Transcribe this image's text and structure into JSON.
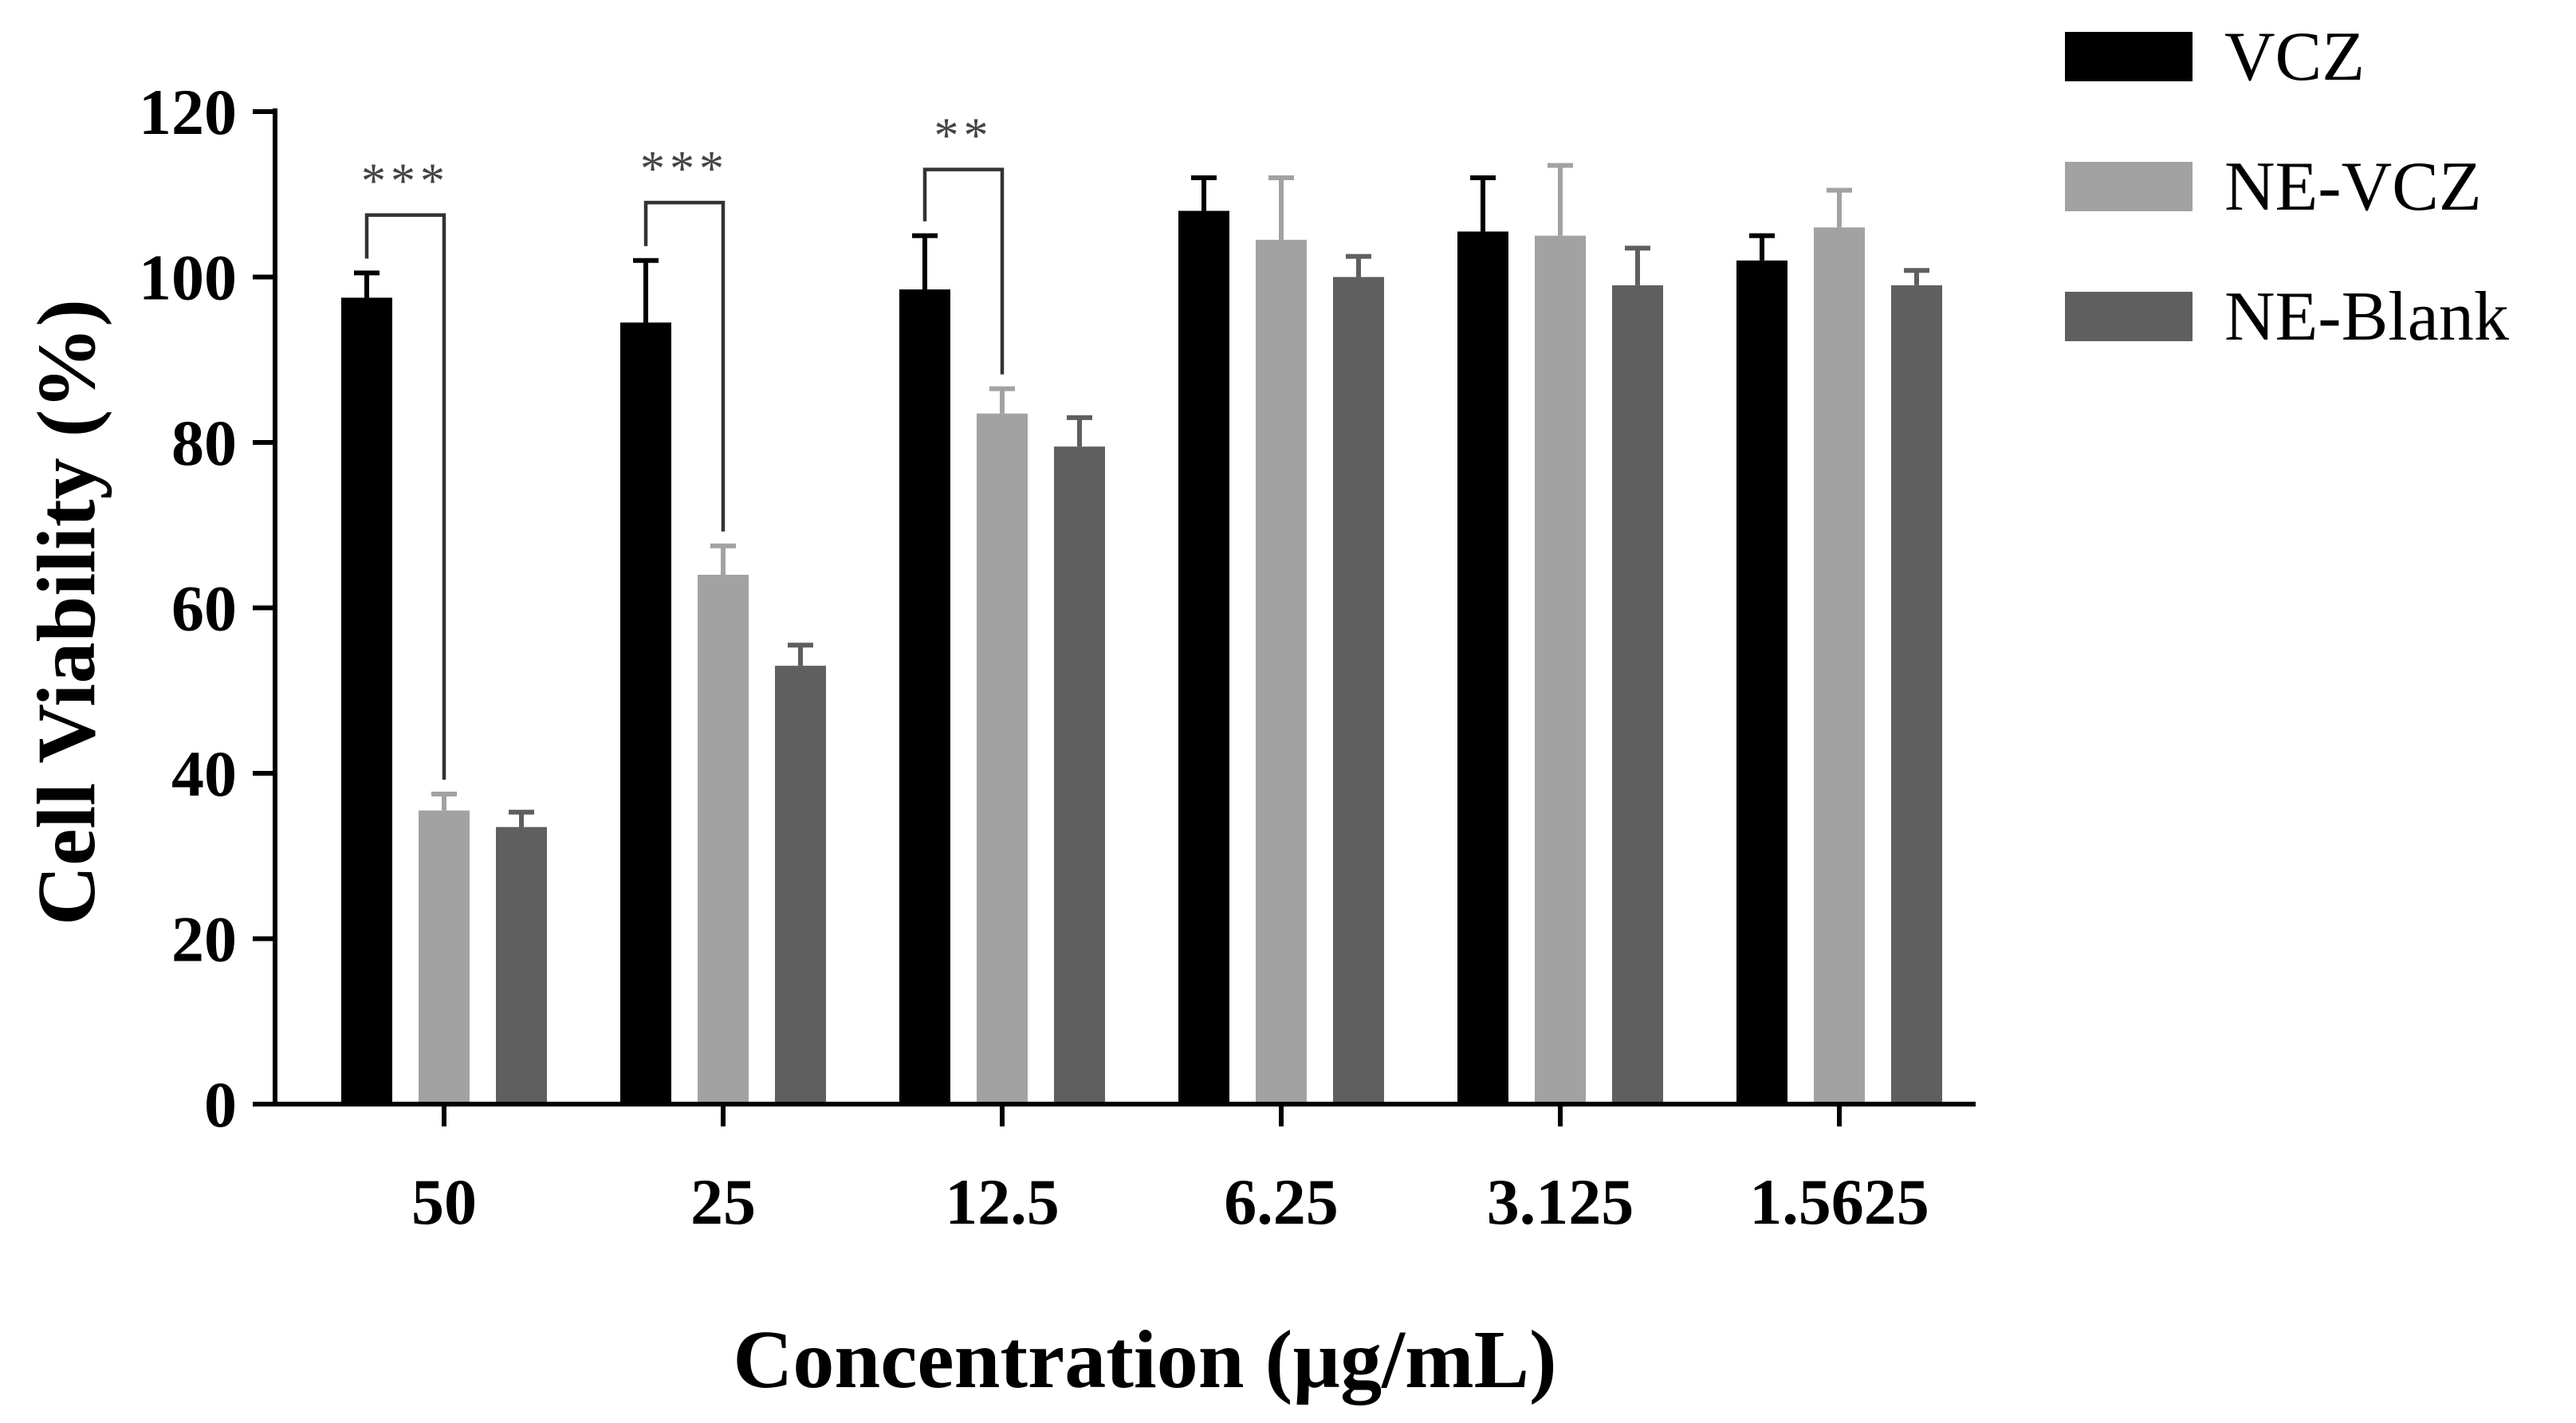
{
  "chart_data": {
    "type": "bar",
    "title": "",
    "xlabel": "Concentration (µg/mL)",
    "ylabel": "Cell Viability (%)",
    "ylim": [
      0,
      120
    ],
    "yticks": [
      0,
      20,
      40,
      60,
      80,
      100,
      120
    ],
    "categories": [
      "50",
      "25",
      "12.5",
      "6.25",
      "3.125",
      "1.5625"
    ],
    "series": [
      {
        "name": "VCZ",
        "color": "#000000",
        "values": [
          97.5,
          94.5,
          98.5,
          108,
          105.5,
          102
        ],
        "errors": [
          3,
          7.5,
          6.5,
          4,
          6.5,
          3
        ]
      },
      {
        "name": "NE-VCZ",
        "color": "#a2a2a2",
        "values": [
          35.5,
          64,
          83.5,
          104.5,
          105,
          106
        ],
        "errors": [
          2,
          3.5,
          3,
          7.5,
          8.5,
          4.5
        ]
      },
      {
        "name": "NE-Blank",
        "color": "#5f5f5f",
        "values": [
          33.5,
          53,
          79.5,
          100,
          99,
          99
        ],
        "errors": [
          1.8,
          2.5,
          3.5,
          2.5,
          4.5,
          1.8
        ]
      }
    ],
    "legend": {
      "position": "top-right",
      "entries": [
        "VCZ",
        "NE-VCZ",
        "NE-Blank"
      ]
    },
    "annotations": [
      {
        "category_index": 0,
        "from_series": 0,
        "to_series": 1,
        "label": "***",
        "level": 107.5
      },
      {
        "category_index": 1,
        "from_series": 0,
        "to_series": 1,
        "label": "***",
        "level": 109
      },
      {
        "category_index": 2,
        "from_series": 0,
        "to_series": 1,
        "label": "**",
        "level": 113
      }
    ],
    "grid": false
  }
}
